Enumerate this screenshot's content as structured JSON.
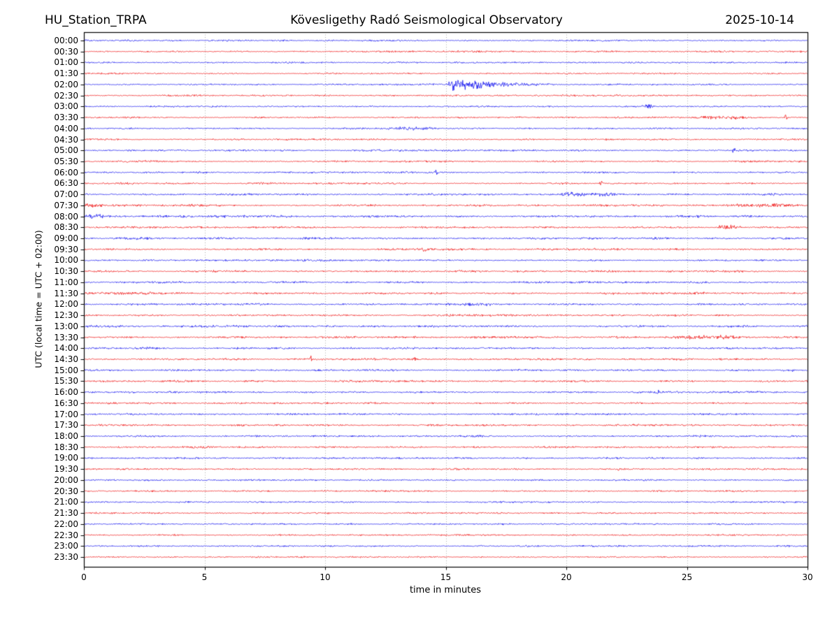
{
  "header": {
    "station": "HU_Station_TRPA",
    "observatory": "Kövesligethy Radó Seismological Observatory",
    "date": "2025-10-14"
  },
  "chart_data": {
    "type": "line",
    "variant": "helicorder-day-plot",
    "title": "HU_Station_TRPA — Kövesligethy Radó Seismological Observatory — 2025-10-14",
    "xlabel": "time in minutes",
    "ylabel": "UTC (local time = UTC + 02:00)",
    "xlim": [
      0,
      30
    ],
    "x_ticks": [
      0,
      5,
      10,
      15,
      20,
      25,
      30
    ],
    "minutes_per_row": 30,
    "grid": "vertical dotted lines every 5 minutes",
    "legend": "none",
    "trace_colors": {
      "blue": "#0000ee",
      "red": "#ee0000"
    },
    "grid_color": "#999999",
    "axis_color": "#000000",
    "rows": [
      {
        "label": "00:00",
        "color": "blue",
        "noise": 1.15,
        "events": []
      },
      {
        "label": "00:30",
        "color": "red",
        "noise": 1.1,
        "events": []
      },
      {
        "label": "01:00",
        "color": "blue",
        "noise": 1.15,
        "events": []
      },
      {
        "label": "01:30",
        "color": "red",
        "noise": 1.1,
        "events": []
      },
      {
        "label": "02:00",
        "color": "blue",
        "noise": 1.2,
        "events": [
          {
            "t0": 12.8,
            "t1": 14.95,
            "amp": 0.7,
            "shape": "burst"
          },
          {
            "t0": 15.0,
            "t1": 19.5,
            "amp": 12,
            "shape": "quake"
          }
        ]
      },
      {
        "label": "02:30",
        "color": "red",
        "noise": 1.1,
        "events": []
      },
      {
        "label": "03:00",
        "color": "blue",
        "noise": 1.15,
        "events": [
          {
            "t0": 23.1,
            "t1": 23.7,
            "amp": 2.8,
            "shape": "burst"
          }
        ]
      },
      {
        "label": "03:30",
        "color": "red",
        "noise": 1.25,
        "events": [
          {
            "t0": 25.3,
            "t1": 27.6,
            "amp": 1.6,
            "shape": "burst"
          },
          {
            "t0": 29.0,
            "t1": 29.2,
            "amp": 5.5,
            "shape": "spike"
          }
        ]
      },
      {
        "label": "04:00",
        "color": "blue",
        "noise": 1.2,
        "events": [
          {
            "t0": 12.3,
            "t1": 14.9,
            "amp": 1.5,
            "shape": "burst"
          }
        ]
      },
      {
        "label": "04:30",
        "color": "red",
        "noise": 1.15,
        "events": []
      },
      {
        "label": "05:00",
        "color": "blue",
        "noise": 1.3,
        "events": [
          {
            "t0": 26.85,
            "t1": 27.05,
            "amp": 5.5,
            "shape": "spike"
          }
        ]
      },
      {
        "label": "05:30",
        "color": "red",
        "noise": 1.25,
        "events": []
      },
      {
        "label": "06:00",
        "color": "blue",
        "noise": 1.35,
        "events": [
          {
            "t0": 14.5,
            "t1": 14.7,
            "amp": 5.5,
            "shape": "spike"
          }
        ]
      },
      {
        "label": "06:30",
        "color": "red",
        "noise": 1.3,
        "events": [
          {
            "t0": 21.35,
            "t1": 21.55,
            "amp": 4.5,
            "shape": "spike"
          }
        ]
      },
      {
        "label": "07:00",
        "color": "blue",
        "noise": 1.4,
        "events": [
          {
            "t0": 19.5,
            "t1": 22.3,
            "amp": 1.7,
            "shape": "burst"
          }
        ]
      },
      {
        "label": "07:30",
        "color": "red",
        "noise": 1.5,
        "events": [
          {
            "t0": 0.0,
            "t1": 0.9,
            "amp": 2.4,
            "shape": "burst"
          },
          {
            "t0": 26.3,
            "t1": 29.9,
            "amp": 1.5,
            "shape": "burst"
          }
        ]
      },
      {
        "label": "08:00",
        "color": "blue",
        "noise": 1.55,
        "events": [
          {
            "t0": 0.0,
            "t1": 0.9,
            "amp": 2.0,
            "shape": "burst"
          }
        ]
      },
      {
        "label": "08:30",
        "color": "red",
        "noise": 1.45,
        "events": [
          {
            "t0": 26.2,
            "t1": 27.3,
            "amp": 3.4,
            "shape": "burst"
          }
        ]
      },
      {
        "label": "09:00",
        "color": "blue",
        "noise": 1.45,
        "events": []
      },
      {
        "label": "09:30",
        "color": "red",
        "noise": 1.4,
        "events": [
          {
            "t0": 14.0,
            "t1": 14.2,
            "amp": 5.0,
            "shape": "spike"
          }
        ]
      },
      {
        "label": "10:00",
        "color": "blue",
        "noise": 1.35,
        "events": []
      },
      {
        "label": "10:30",
        "color": "red",
        "noise": 1.35,
        "events": []
      },
      {
        "label": "11:00",
        "color": "blue",
        "noise": 1.4,
        "events": []
      },
      {
        "label": "11:30",
        "color": "red",
        "noise": 1.65,
        "events": []
      },
      {
        "label": "12:00",
        "color": "blue",
        "noise": 1.4,
        "events": [
          {
            "t0": 15.6,
            "t1": 17.2,
            "amp": 1.6,
            "shape": "burst"
          }
        ]
      },
      {
        "label": "12:30",
        "color": "red",
        "noise": 1.4,
        "events": []
      },
      {
        "label": "13:00",
        "color": "blue",
        "noise": 1.45,
        "events": []
      },
      {
        "label": "13:30",
        "color": "red",
        "noise": 1.5,
        "events": [
          {
            "t0": 24.3,
            "t1": 27.4,
            "amp": 1.9,
            "shape": "burst"
          }
        ]
      },
      {
        "label": "14:00",
        "color": "blue",
        "noise": 1.45,
        "events": []
      },
      {
        "label": "14:30",
        "color": "red",
        "noise": 1.4,
        "events": [
          {
            "t0": 9.3,
            "t1": 9.5,
            "amp": 4.0,
            "shape": "spike"
          },
          {
            "t0": 13.6,
            "t1": 13.8,
            "amp": 4.5,
            "shape": "spike"
          }
        ]
      },
      {
        "label": "15:00",
        "color": "blue",
        "noise": 1.4,
        "events": [
          {
            "t0": 28.9,
            "t1": 29.5,
            "amp": 1.6,
            "shape": "burst"
          }
        ]
      },
      {
        "label": "15:30",
        "color": "red",
        "noise": 1.35,
        "events": []
      },
      {
        "label": "16:00",
        "color": "blue",
        "noise": 1.3,
        "events": [
          {
            "t0": 23.7,
            "t1": 23.9,
            "amp": 3.0,
            "shape": "spike"
          }
        ]
      },
      {
        "label": "16:30",
        "color": "red",
        "noise": 1.3,
        "events": []
      },
      {
        "label": "17:00",
        "color": "blue",
        "noise": 1.3,
        "events": []
      },
      {
        "label": "17:30",
        "color": "red",
        "noise": 1.3,
        "events": []
      },
      {
        "label": "18:00",
        "color": "blue",
        "noise": 1.25,
        "events": []
      },
      {
        "label": "18:30",
        "color": "red",
        "noise": 1.3,
        "events": []
      },
      {
        "label": "19:00",
        "color": "blue",
        "noise": 1.25,
        "events": []
      },
      {
        "label": "19:30",
        "color": "red",
        "noise": 1.25,
        "events": [
          {
            "t0": 22.1,
            "t1": 22.3,
            "amp": 2.5,
            "shape": "spike"
          },
          {
            "t0": 23.9,
            "t1": 24.1,
            "amp": 2.5,
            "shape": "spike"
          }
        ]
      },
      {
        "label": "20:00",
        "color": "blue",
        "noise": 1.2,
        "events": []
      },
      {
        "label": "20:30",
        "color": "red",
        "noise": 1.2,
        "events": []
      },
      {
        "label": "21:00",
        "color": "blue",
        "noise": 1.15,
        "events": []
      },
      {
        "label": "21:30",
        "color": "red",
        "noise": 1.15,
        "events": []
      },
      {
        "label": "22:00",
        "color": "blue",
        "noise": 1.15,
        "events": []
      },
      {
        "label": "22:30",
        "color": "red",
        "noise": 1.1,
        "events": []
      },
      {
        "label": "23:00",
        "color": "blue",
        "noise": 1.15,
        "events": []
      },
      {
        "label": "23:30",
        "color": "red",
        "noise": 1.1,
        "events": []
      }
    ]
  }
}
